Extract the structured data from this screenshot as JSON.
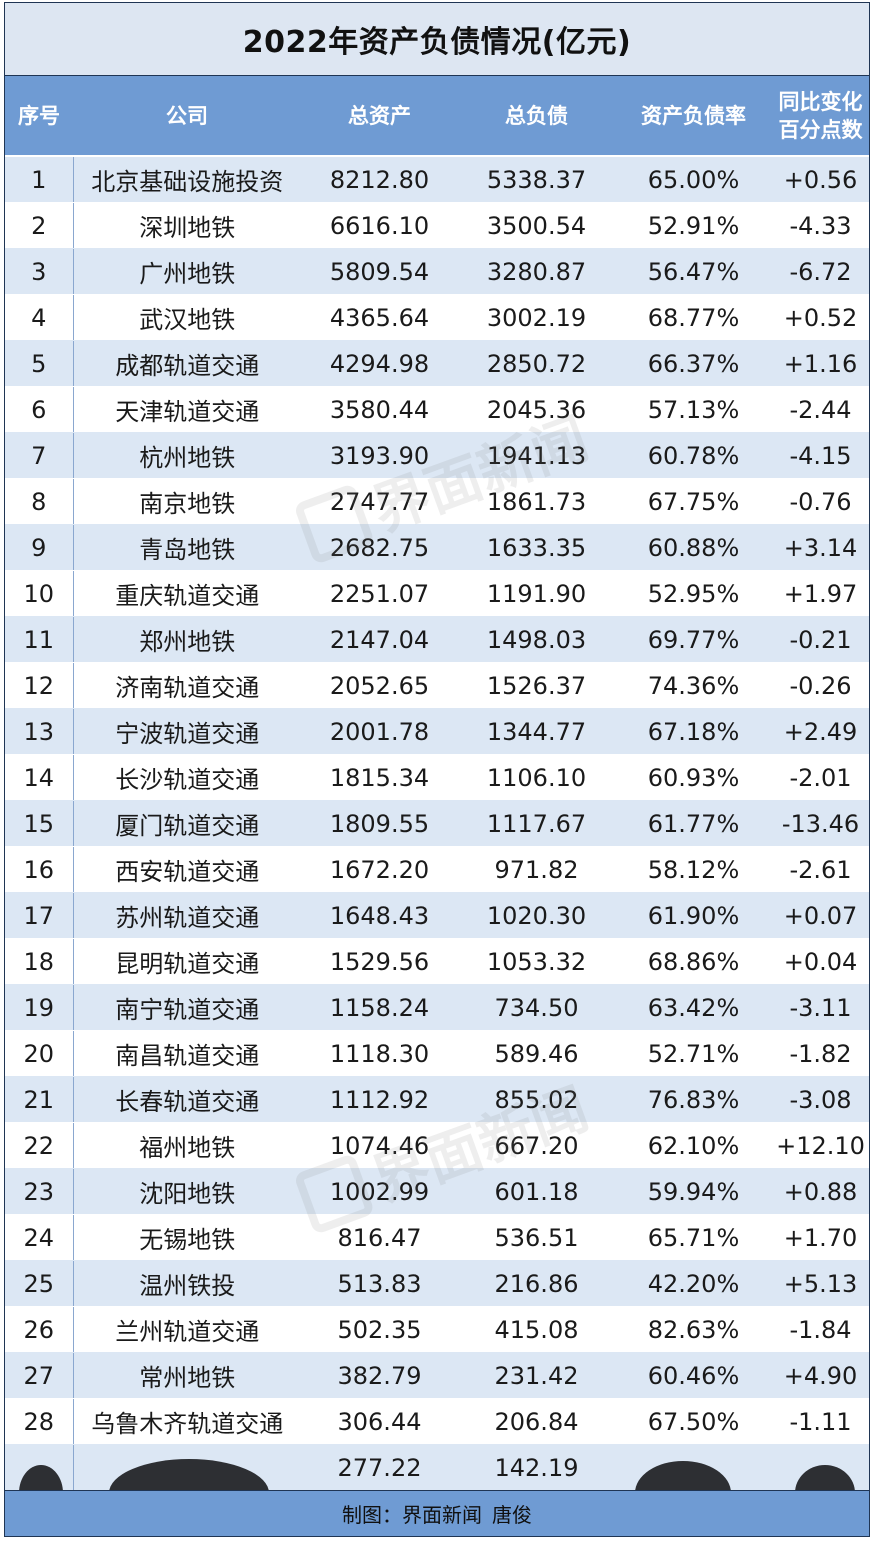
{
  "title": "2022年资产负债情况(亿元)",
  "headers": {
    "index": "序号",
    "company": "公司",
    "assets": "总资产",
    "liabilities": "总负债",
    "ratio": "资产负债率",
    "change_line1": "同比变化",
    "change_line2": "百分点数"
  },
  "rows": [
    {
      "index": "1",
      "company": "北京基础设施投资",
      "assets": "8212.80",
      "liabilities": "5338.37",
      "ratio": "65.00%",
      "change": "+0.56"
    },
    {
      "index": "2",
      "company": "深圳地铁",
      "assets": "6616.10",
      "liabilities": "3500.54",
      "ratio": "52.91%",
      "change": "-4.33"
    },
    {
      "index": "3",
      "company": "广州地铁",
      "assets": "5809.54",
      "liabilities": "3280.87",
      "ratio": "56.47%",
      "change": "-6.72"
    },
    {
      "index": "4",
      "company": "武汉地铁",
      "assets": "4365.64",
      "liabilities": "3002.19",
      "ratio": "68.77%",
      "change": "+0.52"
    },
    {
      "index": "5",
      "company": "成都轨道交通",
      "assets": "4294.98",
      "liabilities": "2850.72",
      "ratio": "66.37%",
      "change": "+1.16"
    },
    {
      "index": "6",
      "company": "天津轨道交通",
      "assets": "3580.44",
      "liabilities": "2045.36",
      "ratio": "57.13%",
      "change": "-2.44"
    },
    {
      "index": "7",
      "company": "杭州地铁",
      "assets": "3193.90",
      "liabilities": "1941.13",
      "ratio": "60.78%",
      "change": "-4.15"
    },
    {
      "index": "8",
      "company": "南京地铁",
      "assets": "2747.77",
      "liabilities": "1861.73",
      "ratio": "67.75%",
      "change": "-0.76"
    },
    {
      "index": "9",
      "company": "青岛地铁",
      "assets": "2682.75",
      "liabilities": "1633.35",
      "ratio": "60.88%",
      "change": "+3.14"
    },
    {
      "index": "10",
      "company": "重庆轨道交通",
      "assets": "2251.07",
      "liabilities": "1191.90",
      "ratio": "52.95%",
      "change": "+1.97"
    },
    {
      "index": "11",
      "company": "郑州地铁",
      "assets": "2147.04",
      "liabilities": "1498.03",
      "ratio": "69.77%",
      "change": "-0.21"
    },
    {
      "index": "12",
      "company": "济南轨道交通",
      "assets": "2052.65",
      "liabilities": "1526.37",
      "ratio": "74.36%",
      "change": "-0.26"
    },
    {
      "index": "13",
      "company": "宁波轨道交通",
      "assets": "2001.78",
      "liabilities": "1344.77",
      "ratio": "67.18%",
      "change": "+2.49"
    },
    {
      "index": "14",
      "company": "长沙轨道交通",
      "assets": "1815.34",
      "liabilities": "1106.10",
      "ratio": "60.93%",
      "change": "-2.01"
    },
    {
      "index": "15",
      "company": "厦门轨道交通",
      "assets": "1809.55",
      "liabilities": "1117.67",
      "ratio": "61.77%",
      "change": "-13.46"
    },
    {
      "index": "16",
      "company": "西安轨道交通",
      "assets": "1672.20",
      "liabilities": "971.82",
      "ratio": "58.12%",
      "change": "-2.61"
    },
    {
      "index": "17",
      "company": "苏州轨道交通",
      "assets": "1648.43",
      "liabilities": "1020.30",
      "ratio": "61.90%",
      "change": "+0.07"
    },
    {
      "index": "18",
      "company": "昆明轨道交通",
      "assets": "1529.56",
      "liabilities": "1053.32",
      "ratio": "68.86%",
      "change": "+0.04"
    },
    {
      "index": "19",
      "company": "南宁轨道交通",
      "assets": "1158.24",
      "liabilities": "734.50",
      "ratio": "63.42%",
      "change": "-3.11"
    },
    {
      "index": "20",
      "company": "南昌轨道交通",
      "assets": "1118.30",
      "liabilities": "589.46",
      "ratio": "52.71%",
      "change": "-1.82"
    },
    {
      "index": "21",
      "company": "长春轨道交通",
      "assets": "1112.92",
      "liabilities": "855.02",
      "ratio": "76.83%",
      "change": "-3.08"
    },
    {
      "index": "22",
      "company": "福州地铁",
      "assets": "1074.46",
      "liabilities": "667.20",
      "ratio": "62.10%",
      "change": "+12.10"
    },
    {
      "index": "23",
      "company": "沈阳地铁",
      "assets": "1002.99",
      "liabilities": "601.18",
      "ratio": "59.94%",
      "change": "+0.88"
    },
    {
      "index": "24",
      "company": "无锡地铁",
      "assets": "816.47",
      "liabilities": "536.51",
      "ratio": "65.71%",
      "change": "+1.70"
    },
    {
      "index": "25",
      "company": "温州铁投",
      "assets": "513.83",
      "liabilities": "216.86",
      "ratio": "42.20%",
      "change": "+5.13"
    },
    {
      "index": "26",
      "company": "兰州轨道交通",
      "assets": "502.35",
      "liabilities": "415.08",
      "ratio": "82.63%",
      "change": "-1.84"
    },
    {
      "index": "27",
      "company": "常州地铁",
      "assets": "382.79",
      "liabilities": "231.42",
      "ratio": "60.46%",
      "change": "+4.90"
    },
    {
      "index": "28",
      "company": "乌鲁木齐轨道交通",
      "assets": "306.44",
      "liabilities": "206.84",
      "ratio": "67.50%",
      "change": "-1.11"
    },
    {
      "index": "",
      "company": "",
      "assets": "277.22",
      "liabilities": "142.19",
      "ratio": "",
      "change": ""
    }
  ],
  "footer": {
    "label": "制图：界面新闻",
    "author": "唐俊"
  },
  "watermark": {
    "text": "界面新闻"
  },
  "colors": {
    "header_bg": "#6f9bd3",
    "stripe": "#dce7f4",
    "title_bg": "#dde6f2",
    "border": "#1f3554"
  }
}
